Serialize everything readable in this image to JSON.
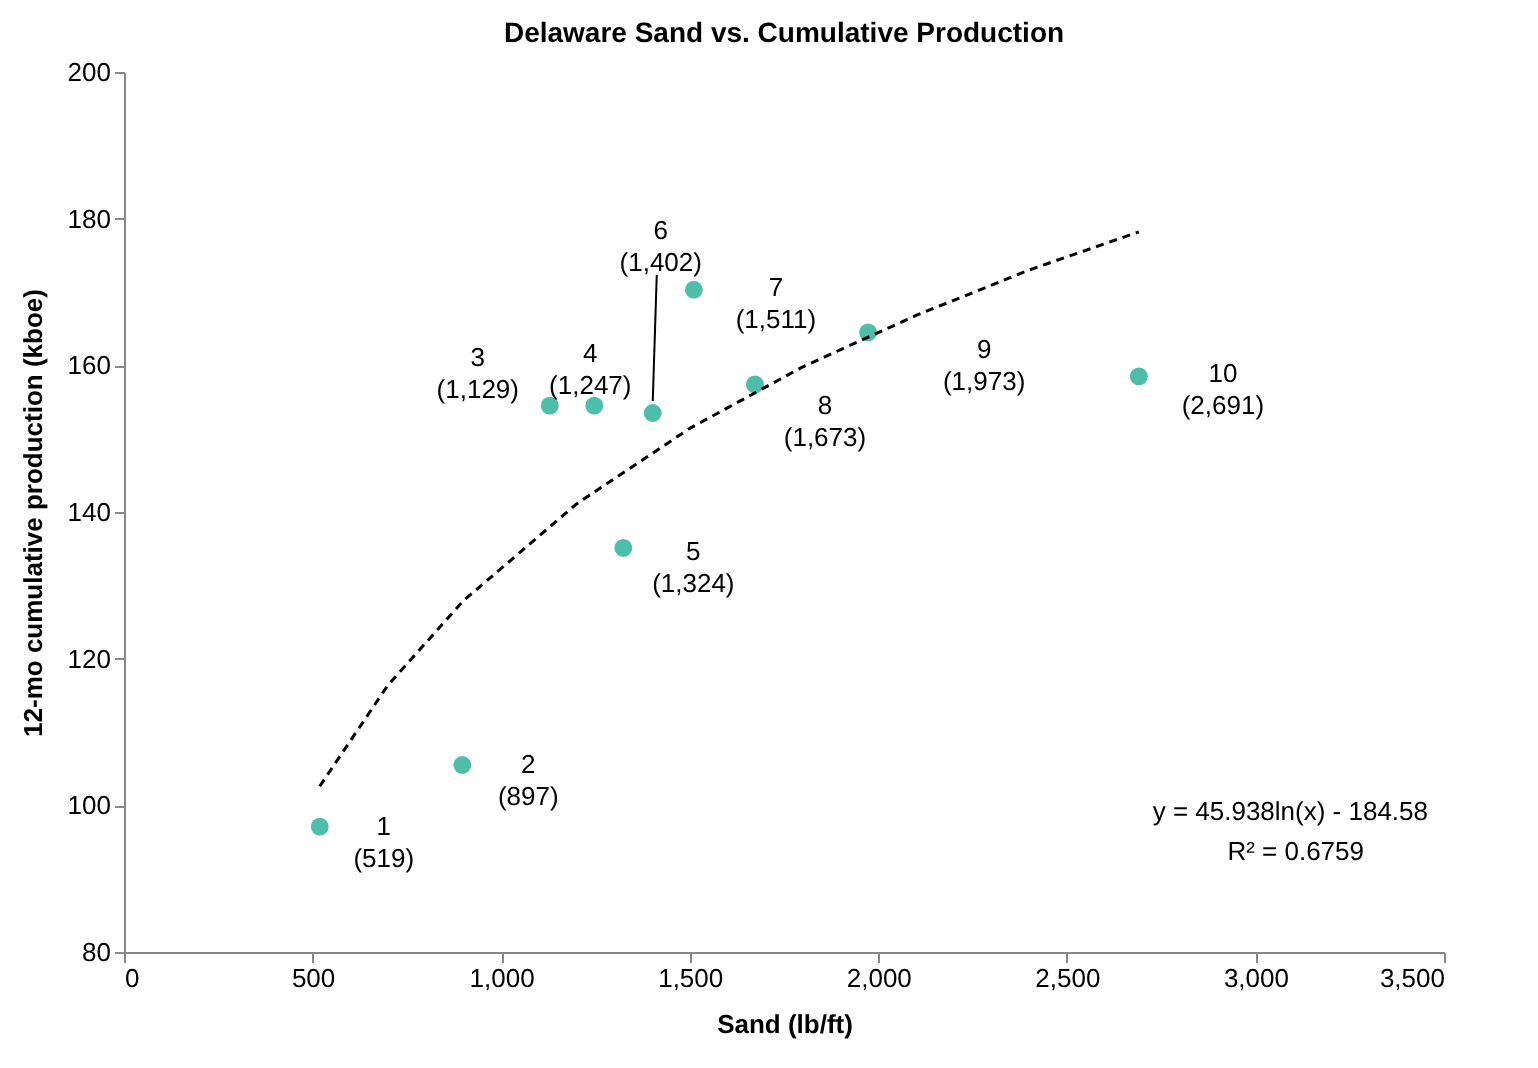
{
  "chart_data": {
    "type": "scatter",
    "title": "Delaware Sand vs. Cumulative Production",
    "xlabel": "Sand (lb/ft)",
    "ylabel": "12-mo cumulative production (kboe)",
    "xlim": [
      0,
      3500
    ],
    "xticks": [
      0,
      {
        "value": 500,
        "label": "500"
      },
      {
        "value": 1000,
        "label": "1,000"
      },
      {
        "value": 1500,
        "label": "1,500"
      },
      {
        "value": 2000,
        "label": "2,000"
      },
      {
        "value": 2500,
        "label": "2,500"
      },
      {
        "value": 3000,
        "label": "3,000"
      },
      {
        "value": 3500,
        "label": "3,500"
      }
    ],
    "ylim": [
      80,
      200
    ],
    "yticks": [
      80,
      100,
      120,
      140,
      160,
      180,
      200
    ],
    "grid": false,
    "series": [
      {
        "type": "scatter",
        "marker": "circle",
        "color": "#4dbfa8",
        "x": [
          519,
          897,
          1129,
          1247,
          1402,
          1324,
          1511,
          1673,
          1973,
          2691
        ],
        "values": [
          97.1,
          105.5,
          154.5,
          154.5,
          153.5,
          135.1,
          170.3,
          157.4,
          164.5,
          158.5
        ]
      },
      {
        "type": "line",
        "color": "#000000",
        "line_style": "dashed",
        "x": [
          519,
          700,
          900,
          1200,
          1500,
          1800,
          2100,
          2400,
          2691
        ],
        "values": [
          102.6,
          116.4,
          127.9,
          141.1,
          151.4,
          159.8,
          166.8,
          173.0,
          178.2
        ]
      }
    ],
    "annotations": [
      {
        "text": "1\n(519)",
        "x": 519,
        "y": 97.1
      },
      {
        "text": "2\n(897)",
        "x": 897,
        "y": 105.5
      },
      {
        "text": "3\n(1,129)",
        "x": 1129,
        "y": 154.5
      },
      {
        "text": "4\n(1,247)",
        "x": 1247,
        "y": 154.5
      },
      {
        "text": "6\n(1,402)",
        "x": 1402,
        "y": 153.5
      },
      {
        "text": "5\n(1,324)",
        "x": 1324,
        "y": 135.1
      },
      {
        "text": "7\n(1,511)",
        "x": 1511,
        "y": 170.3
      },
      {
        "text": "8\n(1,673)",
        "x": 1673,
        "y": 157.4
      },
      {
        "text": "9\n(1,973)",
        "x": 1973,
        "y": 164.5
      },
      {
        "text": "10\n(2,691)",
        "x": 2691,
        "y": 158.5
      },
      "y = 45.938ln(x) - 184.58",
      "R² = 0.6759"
    ]
  }
}
